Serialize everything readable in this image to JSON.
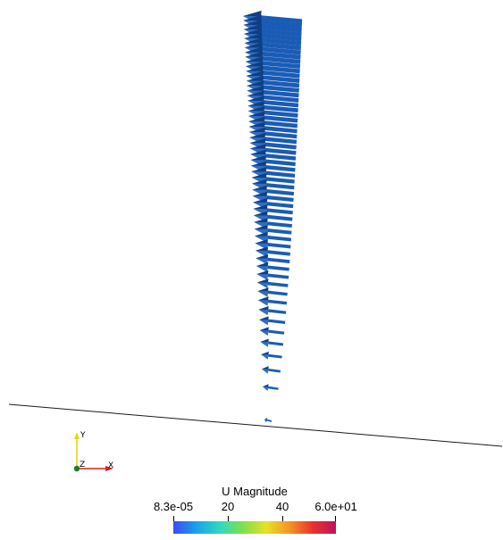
{
  "scene": {
    "vector_color": "#1a5cb5",
    "vector_highlight": "#3d7fd6",
    "vector_shadow": "#0e3f85",
    "ground_line_color": "#1a1a1a"
  },
  "orientation_axes": {
    "x_label": "X",
    "y_label": "Y",
    "z_label": "Z",
    "x_color": "#d42020",
    "y_color": "#e8d41a",
    "z_color": "#1f7a1f"
  },
  "colorbar": {
    "title": "U Magnitude",
    "ticks": [
      "8.3e-05",
      "20",
      "40",
      "6.0e+01"
    ],
    "range": [
      8.3e-05,
      60
    ],
    "colormap": [
      "#3a4cf0",
      "#1aa2e8",
      "#2fd8c0",
      "#7ee14a",
      "#e8e027",
      "#f59424",
      "#e8312f",
      "#c1105c"
    ]
  }
}
